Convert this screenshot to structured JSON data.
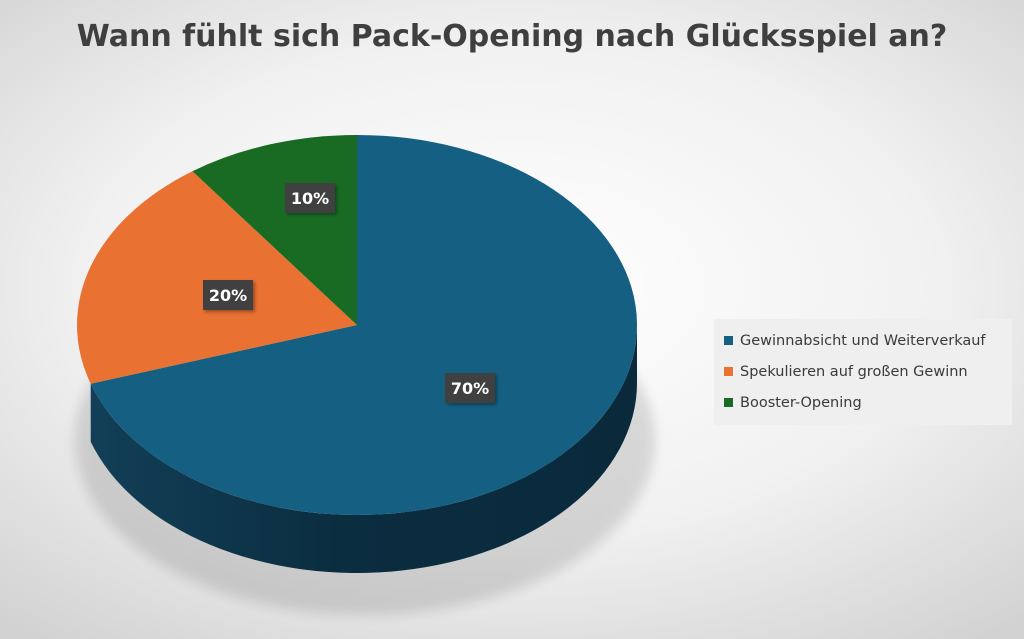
{
  "chart_data": {
    "type": "pie",
    "title": "Wann fühlt sich Pack-Opening nach Glücksspiel an?",
    "categories": [
      "Gewinnabsicht und Weiterverkauf",
      "Spekulieren auf großen Gewinn",
      "Booster-Opening"
    ],
    "values": [
      70,
      20,
      10
    ],
    "data_labels": [
      "70%",
      "20%",
      "10%"
    ],
    "colors": [
      "#156082",
      "#e97132",
      "#196b24"
    ],
    "legend_position": "right",
    "style": "3d"
  }
}
